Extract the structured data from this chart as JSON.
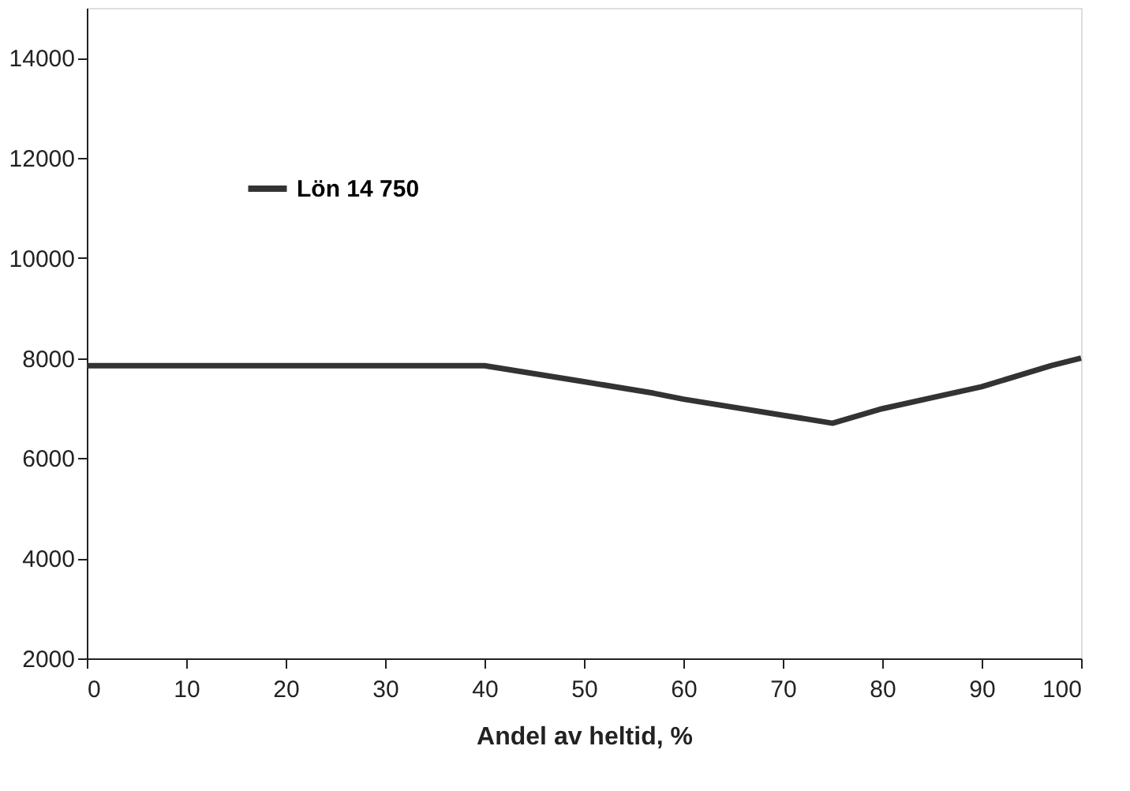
{
  "chart_data": {
    "type": "line",
    "xlabel": "Andel av heltid, %",
    "x": [
      0,
      10,
      20,
      30,
      40,
      50,
      57,
      60,
      70,
      75,
      80,
      90,
      97,
      100
    ],
    "series": [
      {
        "name": "Lön 14 750",
        "color": "#333333",
        "values": [
          7850,
          7850,
          7850,
          7850,
          7850,
          7530,
          7300,
          7180,
          6860,
          6700,
          6990,
          7430,
          7850,
          8000
        ]
      }
    ],
    "xlim": [
      0,
      100
    ],
    "xticks": [
      0,
      10,
      20,
      30,
      40,
      50,
      60,
      70,
      80,
      90,
      100
    ],
    "ylim": [
      2000,
      15000
    ],
    "yticks": [
      2000,
      4000,
      6000,
      8000,
      10000,
      12000,
      14000
    ],
    "grid": false,
    "legend": "top left",
    "marker": "none",
    "line_style": "solid"
  }
}
